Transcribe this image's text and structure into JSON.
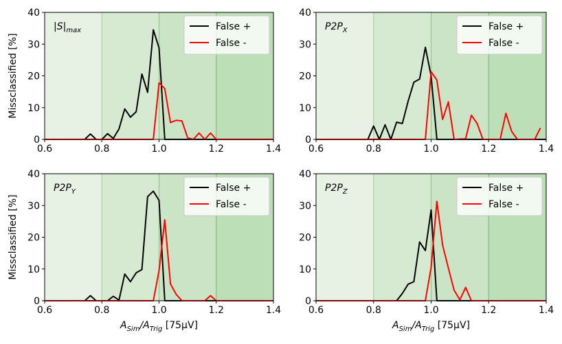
{
  "chart_data": [
    {
      "type": "line",
      "annotation": {
        "text": "|S|",
        "sub": "max"
      },
      "ylabel": "Missclassified [%]",
      "xlim": [
        0.6,
        1.4
      ],
      "xticks": [
        0.6,
        0.8,
        {
          "value": 1.0,
          "label": "1.0"
        },
        1.2,
        1.4
      ],
      "ylim": [
        0,
        40
      ],
      "yticks": [
        0,
        10,
        20,
        30,
        40
      ],
      "legend": "upper right",
      "shaded_regions": [
        {
          "x": [
            0.6,
            0.8
          ],
          "color": "#e7f1e4"
        },
        {
          "x": [
            0.8,
            1.0
          ],
          "color": "#d6eAd2"
        },
        {
          "x": [
            1.0,
            1.2
          ],
          "color": "#cae4c5"
        },
        {
          "x": [
            1.2,
            1.4
          ],
          "color": "#bddfb8"
        }
      ],
      "series": [
        {
          "name": "False +",
          "color": "#000000",
          "x": [
            0.6,
            0.74,
            0.76,
            0.78,
            0.8,
            0.82,
            0.84,
            0.86,
            0.88,
            0.9,
            0.92,
            0.94,
            0.96,
            0.98,
            1.0,
            1.02,
            1.4
          ],
          "values": [
            0,
            0,
            1.7,
            0,
            0,
            1.8,
            0.3,
            3.3,
            9.6,
            7,
            8.7,
            20.6,
            14.8,
            34.5,
            28.8,
            0,
            0
          ]
        },
        {
          "name": "False -",
          "color": "#ff0000",
          "x": [
            0.6,
            0.98,
            1.0,
            1.02,
            1.04,
            1.06,
            1.08,
            1.1,
            1.12,
            1.14,
            1.16,
            1.18,
            1.2,
            1.4
          ],
          "values": [
            0,
            0,
            17.8,
            16,
            5.3,
            6,
            5.8,
            0.5,
            0,
            2,
            0,
            2,
            0,
            0
          ]
        }
      ]
    },
    {
      "type": "line",
      "annotation": {
        "text": "P2P",
        "sub": "X"
      },
      "xlim": [
        0.6,
        1.4
      ],
      "xticks": [
        0.6,
        0.8,
        {
          "value": 1.0,
          "label": "1.0"
        },
        1.2,
        1.4
      ],
      "ylim": [
        0,
        40
      ],
      "yticks": [
        0,
        10,
        20,
        30,
        40
      ],
      "legend": "upper right",
      "shaded_regions": [
        {
          "x": [
            0.6,
            0.8
          ],
          "color": "#e7f1e4"
        },
        {
          "x": [
            0.8,
            1.0
          ],
          "color": "#d6eAd2"
        },
        {
          "x": [
            1.0,
            1.2
          ],
          "color": "#cae4c5"
        },
        {
          "x": [
            1.2,
            1.4
          ],
          "color": "#bddfb8"
        }
      ],
      "series": [
        {
          "name": "False +",
          "color": "#000000",
          "x": [
            0.6,
            0.78,
            0.8,
            0.82,
            0.84,
            0.86,
            0.88,
            0.9,
            0.92,
            0.94,
            0.96,
            0.98,
            1.0,
            1.02,
            1.4
          ],
          "values": [
            0,
            0,
            4.2,
            0,
            4.6,
            0,
            5.4,
            5,
            12,
            18,
            19,
            29,
            20,
            0,
            0
          ]
        },
        {
          "name": "False -",
          "color": "#ff0000",
          "x": [
            0.6,
            0.98,
            1.0,
            1.02,
            1.04,
            1.06,
            1.08,
            1.12,
            1.14,
            1.16,
            1.18,
            1.24,
            1.26,
            1.28,
            1.3,
            1.36,
            1.38
          ],
          "values": [
            0,
            0,
            21.3,
            18.7,
            6.3,
            11.8,
            0,
            0.2,
            7.6,
            5,
            0,
            0,
            8.2,
            2.5,
            0,
            0,
            3.6
          ]
        }
      ]
    },
    {
      "type": "line",
      "annotation": {
        "text": "P2P",
        "sub": "Y"
      },
      "ylabel": "Missclassified [%]",
      "xlabel": [
        "A",
        "Sim",
        "/A",
        "Trig",
        " [75µV]"
      ],
      "xlim": [
        0.6,
        1.4
      ],
      "xticks": [
        0.6,
        0.8,
        {
          "value": 1.0,
          "label": "1.0"
        },
        1.2,
        1.4
      ],
      "ylim": [
        0,
        40
      ],
      "yticks": [
        0,
        10,
        20,
        30,
        40
      ],
      "legend": "upper right",
      "shaded_regions": [
        {
          "x": [
            0.6,
            0.8
          ],
          "color": "#e7f1e4"
        },
        {
          "x": [
            0.8,
            1.0
          ],
          "color": "#d6eAd2"
        },
        {
          "x": [
            1.0,
            1.2
          ],
          "color": "#cae4c5"
        },
        {
          "x": [
            1.2,
            1.4
          ],
          "color": "#bddfb8"
        }
      ],
      "series": [
        {
          "name": "False +",
          "color": "#000000",
          "x": [
            0.6,
            0.74,
            0.76,
            0.78,
            0.82,
            0.84,
            0.86,
            0.88,
            0.9,
            0.92,
            0.94,
            0.96,
            0.98,
            1.0,
            1.02,
            1.4
          ],
          "values": [
            0,
            0,
            1.6,
            0,
            0,
            1.4,
            0.2,
            8.4,
            6,
            8.8,
            9.8,
            32.8,
            34.5,
            31.6,
            0,
            0
          ]
        },
        {
          "name": "False -",
          "color": "#ff0000",
          "x": [
            0.6,
            0.98,
            1.0,
            1.02,
            1.04,
            1.06,
            1.08,
            1.16,
            1.18,
            1.2,
            1.4
          ],
          "values": [
            0,
            0,
            9.5,
            25.5,
            5.3,
            2,
            0,
            0,
            1.6,
            0,
            0
          ]
        }
      ]
    },
    {
      "type": "line",
      "annotation": {
        "text": "P2P",
        "sub": "Z"
      },
      "xlabel": [
        "A",
        "Sim",
        "/A",
        "Trig",
        " [75µV]"
      ],
      "xlim": [
        0.6,
        1.4
      ],
      "xticks": [
        0.6,
        0.8,
        {
          "value": 1.0,
          "label": "1.0"
        },
        1.2,
        1.4
      ],
      "ylim": [
        0,
        40
      ],
      "yticks": [
        0,
        10,
        20,
        30,
        40
      ],
      "legend": "upper right",
      "shaded_regions": [
        {
          "x": [
            0.6,
            0.8
          ],
          "color": "#e7f1e4"
        },
        {
          "x": [
            0.8,
            1.0
          ],
          "color": "#d6eAd2"
        },
        {
          "x": [
            1.0,
            1.2
          ],
          "color": "#cae4c5"
        },
        {
          "x": [
            1.2,
            1.4
          ],
          "color": "#bddfb8"
        }
      ],
      "series": [
        {
          "name": "False +",
          "color": "#000000",
          "x": [
            0.6,
            0.88,
            0.9,
            0.92,
            0.94,
            0.96,
            0.98,
            1.0,
            1.02,
            1.4
          ],
          "values": [
            0,
            0,
            2.3,
            5.2,
            6,
            18.5,
            15.8,
            28.6,
            0,
            0
          ]
        },
        {
          "name": "False -",
          "color": "#ff0000",
          "x": [
            0.6,
            0.98,
            1.0,
            1.02,
            1.04,
            1.06,
            1.08,
            1.1,
            1.12,
            1.14,
            1.4
          ],
          "values": [
            0,
            0,
            10.5,
            31.3,
            17.5,
            10.3,
            3.3,
            0.3,
            4.2,
            0,
            0
          ]
        }
      ]
    }
  ]
}
